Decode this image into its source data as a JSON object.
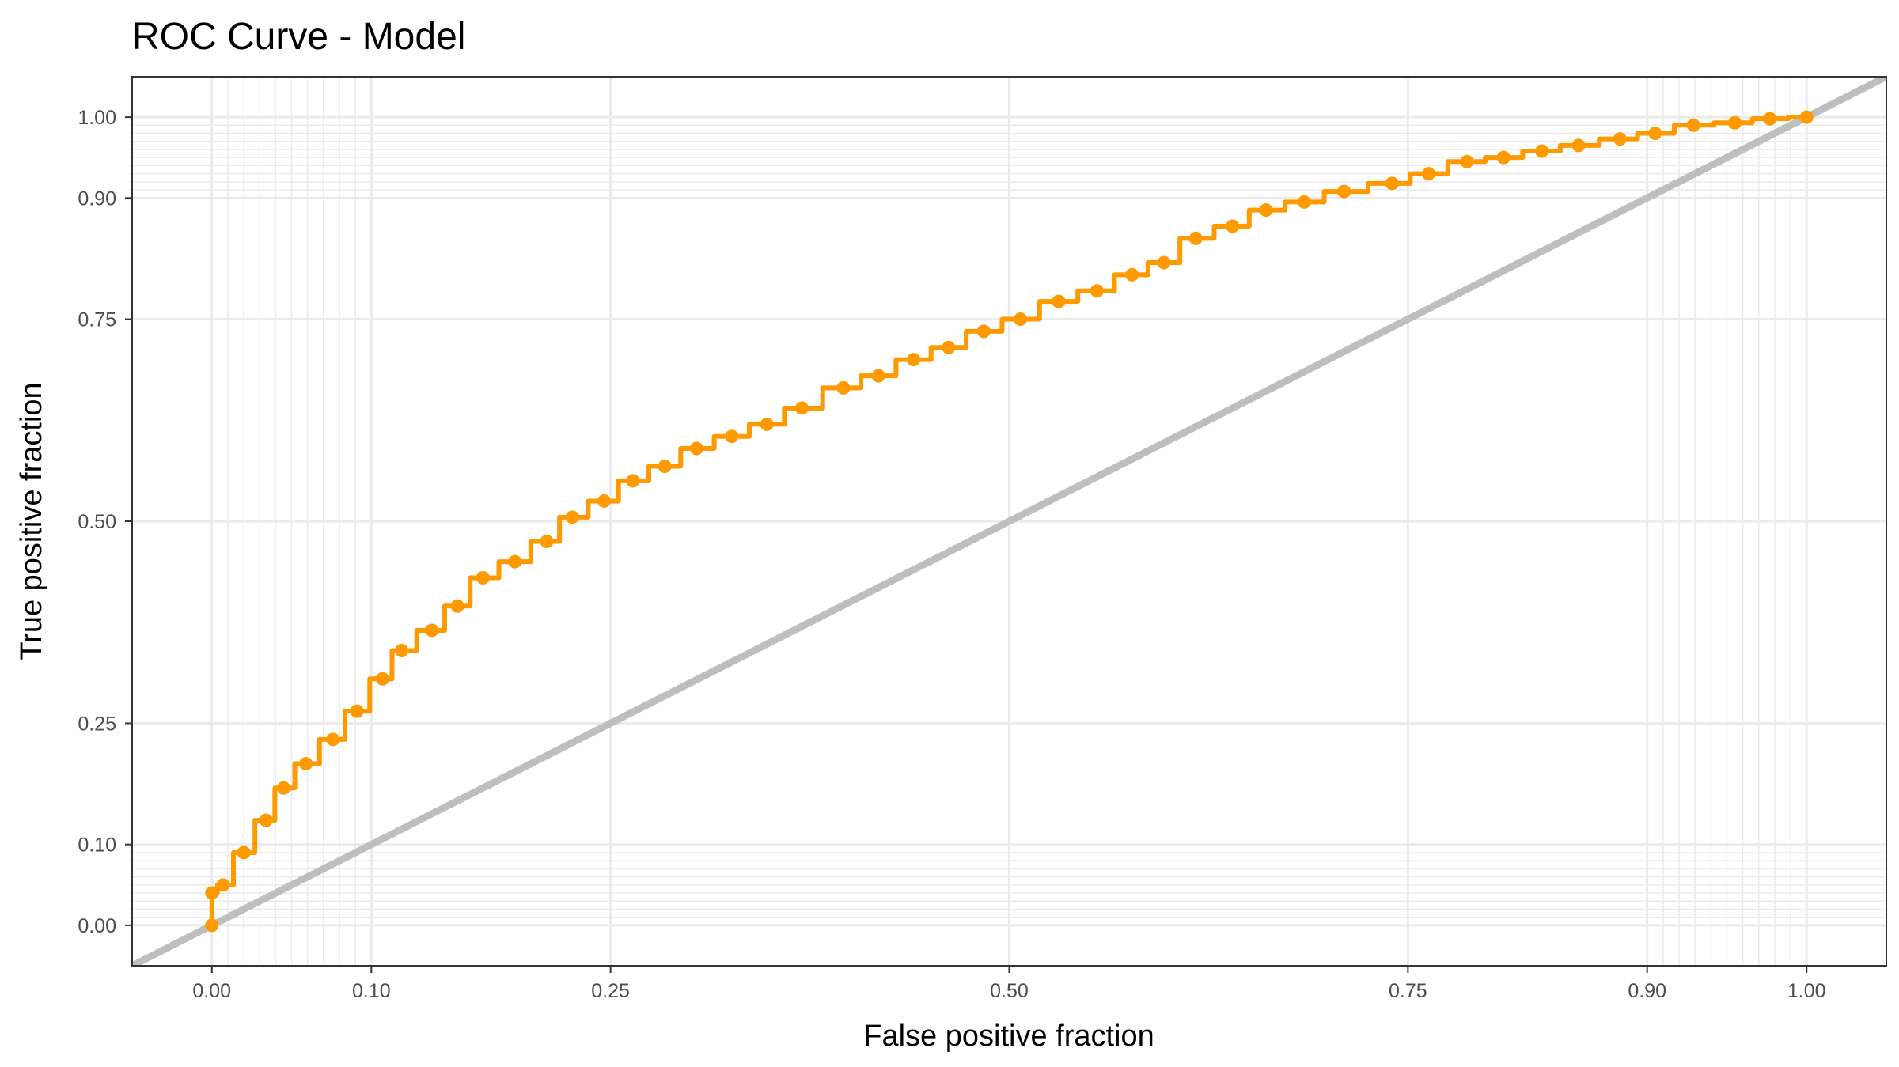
{
  "chart_data": {
    "type": "line",
    "title": "ROC Curve - Model",
    "xlabel": "False positive fraction",
    "ylabel": "True positive fraction",
    "xlim": [
      -0.05,
      1.05
    ],
    "ylim": [
      -0.05,
      1.05
    ],
    "xticks": [
      0.0,
      0.1,
      0.25,
      0.5,
      0.75,
      0.9,
      1.0
    ],
    "xtick_labels": [
      "0.00",
      "0.10",
      "0.25",
      "0.50",
      "0.75",
      "0.90",
      "1.00"
    ],
    "yticks": [
      0.0,
      0.1,
      0.25,
      0.5,
      0.75,
      0.9,
      1.0
    ],
    "ytick_labels": [
      "0.00",
      "0.10",
      "0.25",
      "0.50",
      "0.75",
      "0.90",
      "1.00"
    ],
    "minor_gridlines": [
      0.01,
      0.02,
      0.03,
      0.04,
      0.05,
      0.06,
      0.07,
      0.08,
      0.09,
      0.91,
      0.92,
      0.93,
      0.94,
      0.95,
      0.96,
      0.97,
      0.98,
      0.99
    ],
    "grid": true,
    "reference_line": {
      "x": [
        0,
        1
      ],
      "y": [
        0,
        1
      ],
      "color": "#bebebe"
    },
    "series": [
      {
        "color": "#ff9900",
        "x": [
          0.0,
          0.0,
          0.007,
          0.02,
          0.034,
          0.045,
          0.059,
          0.076,
          0.091,
          0.107,
          0.119,
          0.138,
          0.154,
          0.17,
          0.19,
          0.21,
          0.226,
          0.246,
          0.264,
          0.284,
          0.304,
          0.326,
          0.348,
          0.37,
          0.396,
          0.418,
          0.44,
          0.462,
          0.484,
          0.507,
          0.531,
          0.555,
          0.577,
          0.597,
          0.617,
          0.64,
          0.661,
          0.685,
          0.71,
          0.74,
          0.763,
          0.787,
          0.81,
          0.834,
          0.857,
          0.883,
          0.905,
          0.929,
          0.955,
          0.977,
          1.0
        ],
        "y": [
          0.0,
          0.04,
          0.05,
          0.09,
          0.13,
          0.17,
          0.2,
          0.23,
          0.265,
          0.305,
          0.34,
          0.365,
          0.395,
          0.43,
          0.45,
          0.475,
          0.505,
          0.525,
          0.55,
          0.568,
          0.59,
          0.605,
          0.62,
          0.64,
          0.665,
          0.68,
          0.7,
          0.715,
          0.735,
          0.75,
          0.772,
          0.785,
          0.805,
          0.82,
          0.85,
          0.865,
          0.885,
          0.895,
          0.908,
          0.918,
          0.93,
          0.945,
          0.95,
          0.958,
          0.965,
          0.973,
          0.98,
          0.99,
          0.993,
          0.998,
          1.0
        ]
      }
    ]
  }
}
